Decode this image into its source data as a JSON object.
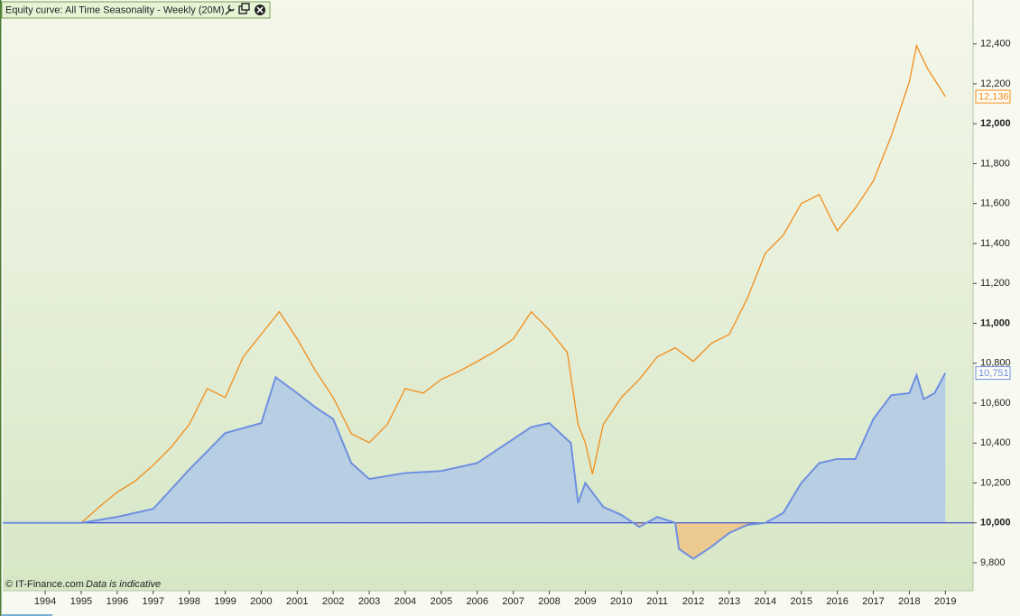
{
  "chart_data": {
    "type": "line",
    "title": "Equity curve: All Time Seasonality - Weekly (20M)",
    "credit": "© IT-Finance.com",
    "note": "Data is indicative",
    "xlim": [
      1992.82,
      2019.77
    ],
    "xticks": [
      1994,
      1995,
      1996,
      1997,
      1998,
      1999,
      2000,
      2001,
      2002,
      2003,
      2004,
      2005,
      2006,
      2007,
      2008,
      2009,
      2010,
      2011,
      2012,
      2013,
      2014,
      2015,
      2016,
      2017,
      2018,
      2019
    ],
    "ylim": [
      9660,
      12620
    ],
    "yticks": [
      {
        "value": 9800,
        "label": "9,800"
      },
      {
        "value": 10000,
        "label": "10,000"
      },
      {
        "value": 10200,
        "label": "10,200"
      },
      {
        "value": 10400,
        "label": "10,400"
      },
      {
        "value": 10600,
        "label": "10,600"
      },
      {
        "value": 10800,
        "label": "10,800"
      },
      {
        "value": 11000,
        "label": "11,000"
      },
      {
        "value": 11200,
        "label": "11,200"
      },
      {
        "value": 11400,
        "label": "11,400"
      },
      {
        "value": 11600,
        "label": "11,600"
      },
      {
        "value": 11800,
        "label": "11,800"
      },
      {
        "value": 12000,
        "label": "12,000"
      },
      {
        "value": 12200,
        "label": "12,200"
      },
      {
        "value": 12400,
        "label": "12,400"
      }
    ],
    "bold_ticks": [
      10000,
      11000,
      12000
    ],
    "baseline": 10000,
    "series": [
      {
        "color": "#f28c1a",
        "fill": false,
        "x": [
          1995.0,
          1995.5,
          1996.0,
          1996.5,
          1997.0,
          1997.5,
          1998.0,
          1998.5,
          1999.0,
          1999.5,
          2000.0,
          2000.5,
          2001.0,
          2001.5,
          2002.0,
          2002.5,
          2003.0,
          2003.5,
          2004.0,
          2004.5,
          2005.0,
          2005.5,
          2006.0,
          2006.5,
          2007.0,
          2007.5,
          2008.0,
          2008.5,
          2008.8,
          2009.0,
          2009.2,
          2009.5,
          2010.0,
          2010.5,
          2011.0,
          2011.5,
          2012.0,
          2012.5,
          2013.0,
          2013.5,
          2014.0,
          2014.5,
          2015.0,
          2015.5,
          2015.8,
          2016.0,
          2016.5,
          2017.0,
          2017.5,
          2018.0,
          2018.2,
          2018.5,
          2018.9,
          2019.0
        ],
        "values": [
          10000,
          10080,
          10154,
          10210,
          10289,
          10380,
          10493,
          10673,
          10628,
          10832,
          10945,
          11058,
          10922,
          10764,
          10628,
          10447,
          10402,
          10493,
          10673,
          10650,
          10719,
          10760,
          10809,
          10860,
          10922,
          11058,
          10967,
          10854,
          10493,
          10402,
          10244,
          10493,
          10628,
          10719,
          10832,
          10877,
          10809,
          10899,
          10945,
          11125,
          11351,
          11442,
          11600,
          11645,
          11532,
          11464,
          11577,
          11713,
          11939,
          12210,
          12391,
          12278,
          12165,
          12136
        ],
        "last_label": "12,136"
      },
      {
        "color": "#6f8fe0",
        "fill": true,
        "fill_above": "#b8cfe3",
        "fill_below": "#ecc98e",
        "x": [
          1992.82,
          1995.0,
          1996.0,
          1997.0,
          1998.0,
          1999.0,
          2000.0,
          2000.4,
          2001.0,
          2001.5,
          2002.0,
          2002.5,
          2003.0,
          2004.0,
          2005.0,
          2006.0,
          2007.0,
          2007.5,
          2008.0,
          2008.6,
          2008.8,
          2009.0,
          2009.5,
          2010.0,
          2010.5,
          2011.0,
          2011.5,
          2011.6,
          2012.0,
          2012.5,
          2013.0,
          2013.5,
          2014.0,
          2014.5,
          2015.0,
          2015.5,
          2016.0,
          2016.5,
          2017.0,
          2017.5,
          2018.0,
          2018.2,
          2018.4,
          2018.7,
          2019.0
        ],
        "values": [
          10000,
          10000,
          10030,
          10070,
          10267,
          10450,
          10500,
          10730,
          10650,
          10580,
          10520,
          10300,
          10220,
          10250,
          10260,
          10300,
          10420,
          10480,
          10500,
          10400,
          10100,
          10200,
          10080,
          10040,
          9980,
          10030,
          10000,
          9870,
          9820,
          9880,
          9950,
          9990,
          10000,
          10050,
          10200,
          10300,
          10320,
          10320,
          10520,
          10640,
          10650,
          10740,
          10620,
          10650,
          10751
        ],
        "last_label": "10,751"
      }
    ]
  }
}
